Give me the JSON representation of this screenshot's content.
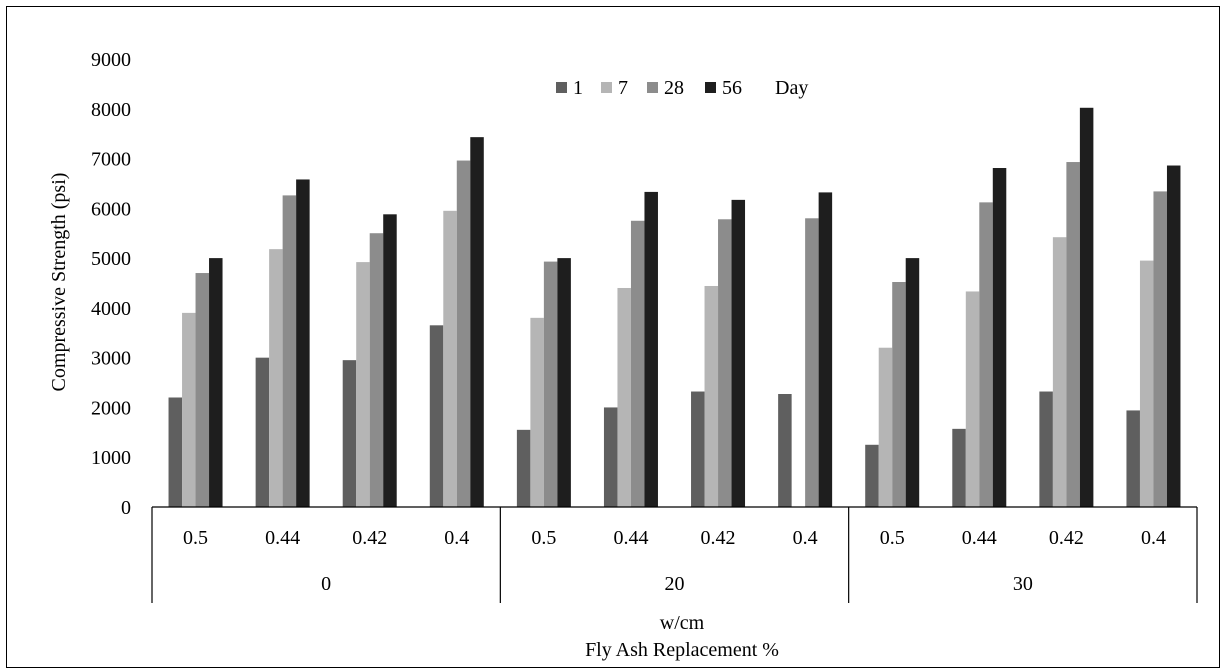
{
  "chart_data": {
    "type": "bar",
    "ylabel": "Compressive Strength (psi)",
    "xlabel_primary": "w/cm",
    "xlabel_secondary": "Fly Ash Replacement %",
    "ylim": [
      0,
      9000
    ],
    "yticks": [
      "0",
      "1000",
      "2000",
      "3000",
      "4000",
      "5000",
      "6000",
      "7000",
      "8000",
      "9000"
    ],
    "groups": [
      {
        "label": "0",
        "categories": [
          "0.5",
          "0.44",
          "0.42",
          "0.4"
        ]
      },
      {
        "label": "20",
        "categories": [
          "0.5",
          "0.44",
          "0.42",
          "0.4"
        ]
      },
      {
        "label": "30",
        "categories": [
          "0.5",
          "0.44",
          "0.42",
          "0.4"
        ]
      }
    ],
    "legend": {
      "placement": "top-center",
      "suffix": "Day"
    },
    "series": [
      {
        "name": "1",
        "color": "#5f5f5f",
        "values": [
          2200,
          3000,
          2950,
          3650,
          1550,
          2000,
          2320,
          2270,
          1250,
          1570,
          2320,
          1940
        ]
      },
      {
        "name": "7",
        "color": "#b5b5b5",
        "values": [
          3900,
          5180,
          4920,
          5950,
          3800,
          4400,
          4440,
          0,
          3200,
          4330,
          5420,
          4950
        ]
      },
      {
        "name": "28",
        "color": "#8c8c8c",
        "values": [
          4700,
          6260,
          5500,
          6960,
          4930,
          5750,
          5780,
          5800,
          4520,
          6120,
          6930,
          6340
        ]
      },
      {
        "name": "56",
        "color": "#1e1e1e",
        "values": [
          5000,
          6580,
          5880,
          7430,
          5000,
          6330,
          6170,
          6320,
          5000,
          6810,
          8020,
          6860
        ]
      }
    ]
  }
}
